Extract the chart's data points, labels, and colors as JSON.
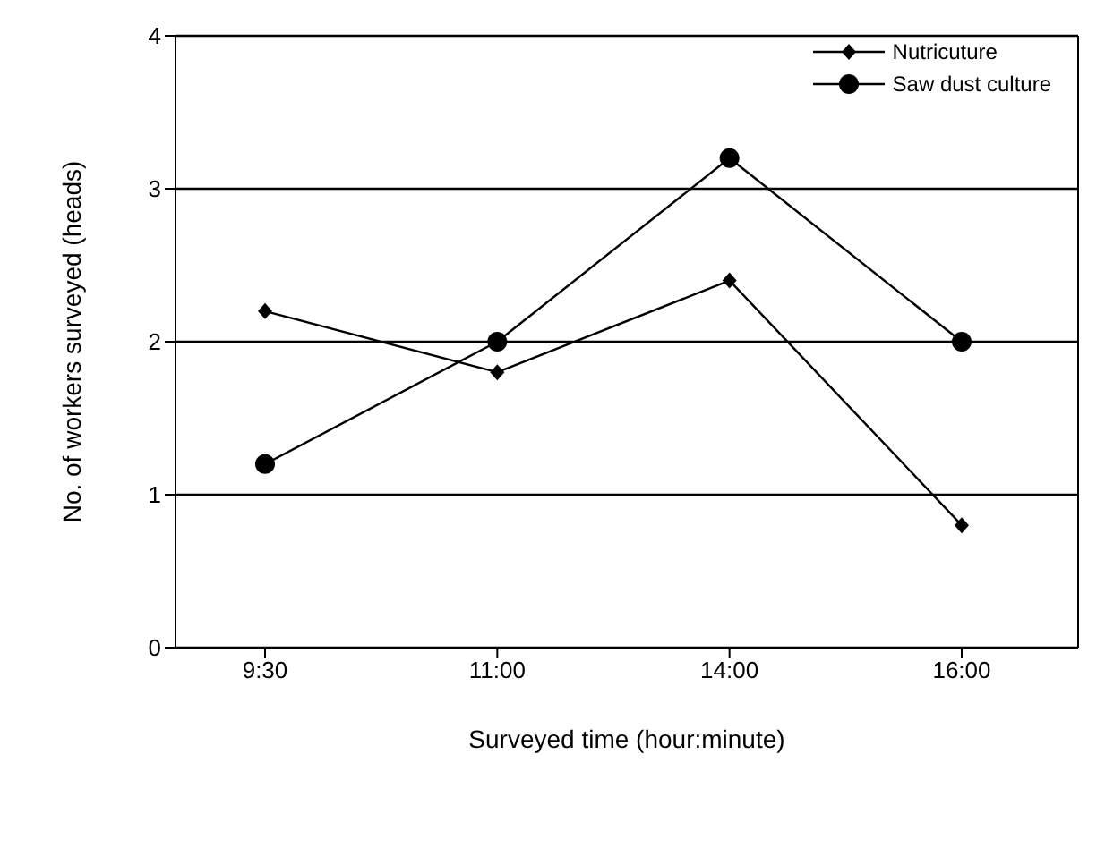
{
  "chart_data": {
    "type": "line",
    "xlabel": "Surveyed time (hour:minute)",
    "ylabel": "No. of workers surveyed (heads)",
    "categories": [
      "9:30",
      "11:00",
      "14:00",
      "16:00"
    ],
    "series": [
      {
        "name": "Nutricuture",
        "color": "#000000",
        "marker": "diamond",
        "values": [
          2.2,
          1.8,
          2.4,
          0.8
        ]
      },
      {
        "name": "Saw dust culture",
        "color": "#000000",
        "marker": "circle",
        "values": [
          1.2,
          2.0,
          3.2,
          2.0
        ]
      }
    ],
    "ylim": [
      0,
      4
    ],
    "yticks": [
      0,
      1,
      2,
      3,
      4
    ],
    "grid": "y",
    "legend": "top right",
    "line_style": "solid"
  }
}
